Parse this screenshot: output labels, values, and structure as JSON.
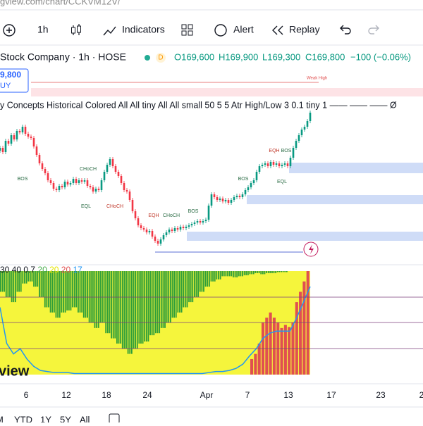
{
  "url": "gview.com/chart/CCKVM12V/",
  "toolbar": {
    "interval": "1h",
    "indicators": "Indicators",
    "alert": "Alert",
    "replay": "Replay"
  },
  "symbol": {
    "name": "Stock Company · 1h · HOSE",
    "badge": "D",
    "open": "O169,600",
    "high": "H169,900",
    "low": "L169,300",
    "close": "C169,800",
    "change": "−100 (−0.06%)"
  },
  "price_box": {
    "price": "9,800",
    "side": "UY"
  },
  "weak_high": "Weak High",
  "indicator_line": "y Concepts Historical Colored All All tiny All All small 50 5 5 Atr High/Low 3 0.1 tiny 1 —— —— ——  Ø",
  "annotations": [
    {
      "text": "BOS",
      "x": 32,
      "y": 254,
      "color": "#2a6b44"
    },
    {
      "text": "CHoCH",
      "x": 125,
      "y": 240,
      "color": "#2a6b44"
    },
    {
      "text": "EQL",
      "x": 122,
      "y": 293,
      "color": "#2a6b44"
    },
    {
      "text": "CHoCH",
      "x": 163,
      "y": 293,
      "color": "#c0392b"
    },
    {
      "text": "EQH",
      "x": 218,
      "y": 306,
      "color": "#c0392b"
    },
    {
      "text": "CHoCH",
      "x": 243,
      "y": 306,
      "color": "#2a6b44"
    },
    {
      "text": "BOS",
      "x": 274,
      "y": 300,
      "color": "#2a6b44"
    },
    {
      "text": "BOS",
      "x": 345,
      "y": 254,
      "color": "#2a6b44"
    },
    {
      "text": "EQH",
      "x": 389,
      "y": 214,
      "color": "#c0392b"
    },
    {
      "text": "BOS",
      "x": 406,
      "y": 214,
      "color": "#2a6b44"
    },
    {
      "text": "EQL",
      "x": 400,
      "y": 258,
      "color": "#2a6b44"
    }
  ],
  "closes": [
    75,
    72,
    80,
    78,
    84,
    81,
    87,
    86,
    90,
    85,
    83,
    82,
    76,
    70,
    64,
    60,
    57,
    52,
    50,
    46,
    45,
    48,
    47,
    51,
    49,
    50,
    53,
    50,
    52,
    51,
    52,
    48,
    47,
    44,
    46,
    45,
    52,
    58,
    63,
    67,
    62,
    58,
    55,
    50,
    45,
    44,
    38,
    30,
    25,
    20,
    18,
    17,
    15,
    16,
    12,
    9,
    7,
    10,
    13,
    15,
    17,
    16,
    18,
    17,
    19,
    18,
    19,
    20,
    21,
    22,
    23,
    22,
    23,
    24,
    34,
    42,
    40,
    38,
    39,
    37,
    38,
    36,
    38,
    40,
    41,
    40,
    42,
    45,
    47,
    50,
    52,
    58,
    62,
    63,
    64,
    62,
    65,
    63,
    64,
    62,
    63,
    64,
    62,
    68,
    75,
    80,
    84,
    88,
    90,
    94,
    100
  ],
  "oscillator": {
    "legend": [
      {
        "text": "30 40 0.7",
        "color": "#131722"
      },
      {
        "text": "20",
        "color": "#4caf50"
      },
      {
        "text": "20",
        "color": "#e6e600"
      },
      {
        "text": "20",
        "color": "#e05050"
      },
      {
        "text": "17",
        "color": "#2196f3"
      }
    ],
    "green": [
      20,
      25,
      30,
      20,
      12,
      10,
      15,
      25,
      35,
      40,
      45,
      40,
      38,
      35,
      40,
      45,
      50,
      55,
      50,
      60,
      65,
      70,
      75,
      80,
      75,
      70,
      68,
      62,
      60,
      55,
      50,
      45,
      40,
      35,
      30,
      25,
      20,
      15,
      10,
      8,
      5,
      5,
      6,
      5,
      4,
      3,
      2,
      3,
      2,
      2,
      1,
      1,
      0,
      0,
      0,
      0
    ],
    "red": [
      15,
      20,
      30,
      50,
      55,
      60,
      55,
      50,
      45,
      48,
      46,
      50,
      70,
      80,
      90,
      100
    ],
    "line": [
      65,
      30,
      20,
      25,
      15,
      8,
      4,
      3,
      2,
      2,
      2,
      1,
      1,
      1,
      1,
      1,
      1,
      1,
      1,
      1,
      1,
      1,
      1,
      1,
      1,
      1,
      1,
      1,
      1,
      1,
      1,
      2,
      3,
      3,
      4,
      6,
      10,
      18,
      25,
      35,
      40,
      42,
      42,
      42,
      55,
      70,
      85
    ]
  },
  "x_labels": [
    {
      "text": "6",
      "x": 37
    },
    {
      "text": "12",
      "x": 94
    },
    {
      "text": "18",
      "x": 151
    },
    {
      "text": "24",
      "x": 209
    },
    {
      "text": "Apr",
      "x": 293
    },
    {
      "text": "7",
      "x": 351
    },
    {
      "text": "13",
      "x": 409
    },
    {
      "text": "17",
      "x": 470
    },
    {
      "text": "23",
      "x": 540
    },
    {
      "text": "2",
      "x": 598
    }
  ],
  "watermark": "view",
  "ranges": [
    "M",
    "YTD",
    "1Y",
    "5Y",
    "All"
  ]
}
